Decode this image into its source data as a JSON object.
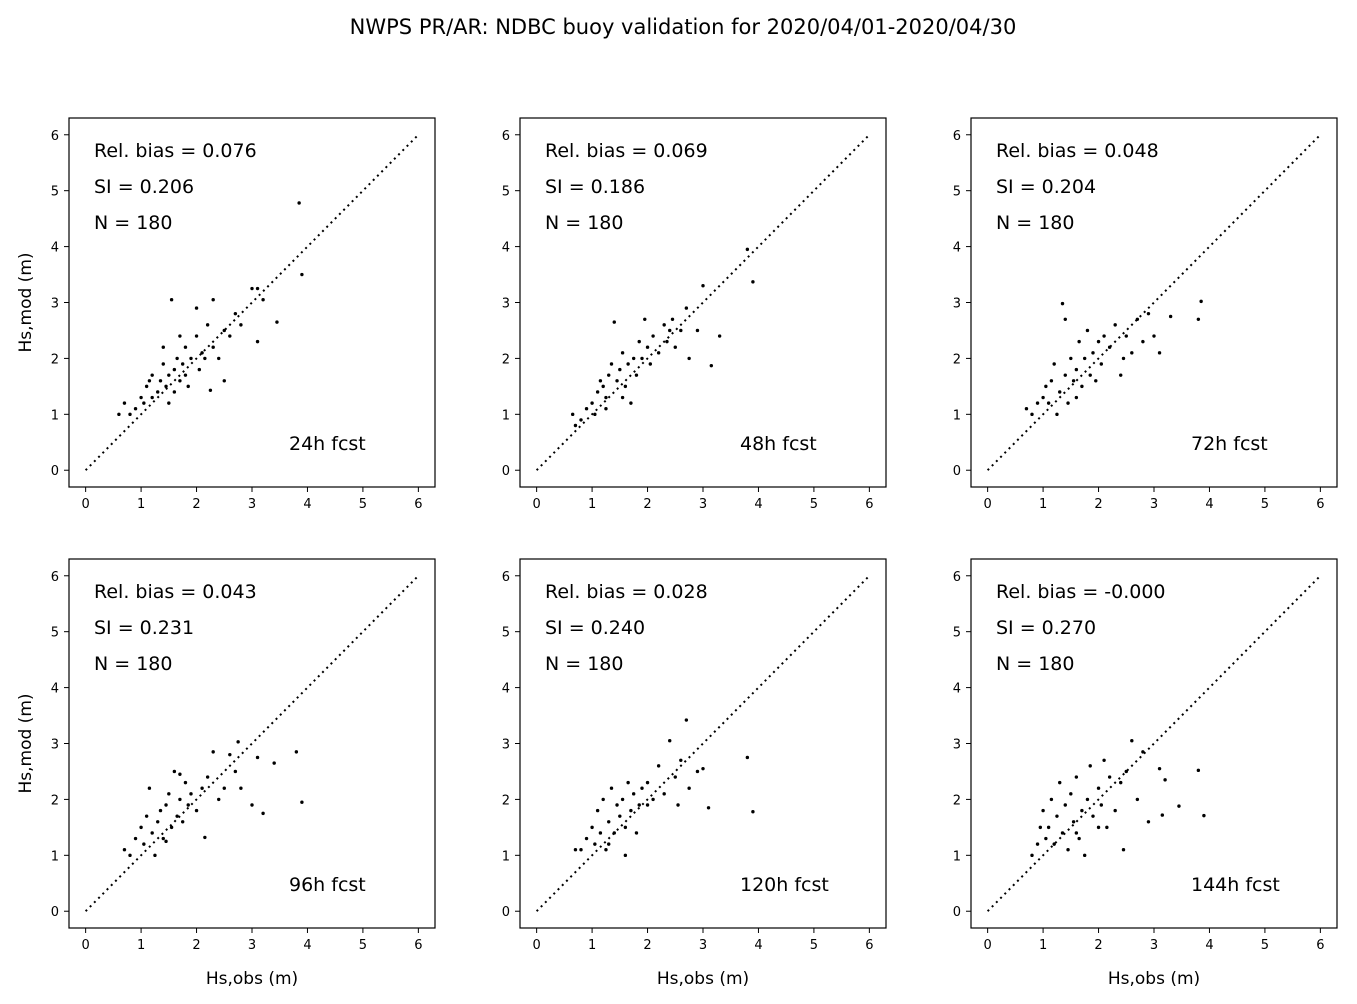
{
  "chart_data": {
    "type": "scatter",
    "title": "NWPS PR/AR: NDBC buoy validation for 2020/04/01-2020/04/30",
    "xlabel": "Hs,obs (m)",
    "ylabel": "Hs,mod (m)",
    "xlim": [
      -0.3,
      6.3
    ],
    "ylim": [
      -0.3,
      6.3
    ],
    "ticks": [
      0,
      1,
      2,
      3,
      4,
      5,
      6
    ],
    "reference_line": {
      "style": "dotted",
      "from": [
        0,
        0
      ],
      "to": [
        6,
        6
      ]
    },
    "panels": [
      {
        "label": "24h fcst",
        "rel_bias": "Rel. bias =  0.076",
        "si": "SI =  0.206",
        "n": "N = 180",
        "points": [
          [
            0.6,
            1.0
          ],
          [
            0.7,
            1.2
          ],
          [
            0.8,
            1.0
          ],
          [
            0.9,
            1.1
          ],
          [
            1.0,
            1.3
          ],
          [
            1.05,
            1.2
          ],
          [
            1.1,
            1.5
          ],
          [
            1.15,
            1.6
          ],
          [
            1.2,
            1.3
          ],
          [
            1.3,
            1.4
          ],
          [
            1.35,
            1.6
          ],
          [
            1.4,
            1.9
          ],
          [
            1.4,
            2.2
          ],
          [
            1.45,
            1.5
          ],
          [
            1.5,
            1.7
          ],
          [
            1.55,
            3.05
          ],
          [
            1.6,
            1.8
          ],
          [
            1.6,
            1.4
          ],
          [
            1.65,
            2.0
          ],
          [
            1.7,
            1.6
          ],
          [
            1.75,
            1.9
          ],
          [
            1.8,
            2.2
          ],
          [
            1.8,
            1.7
          ],
          [
            1.85,
            1.5
          ],
          [
            1.9,
            2.0
          ],
          [
            2.0,
            2.9
          ],
          [
            2.0,
            2.4
          ],
          [
            2.05,
            1.8
          ],
          [
            2.1,
            2.1
          ],
          [
            2.2,
            2.6
          ],
          [
            2.25,
            1.43
          ],
          [
            2.3,
            3.05
          ],
          [
            2.3,
            2.2
          ],
          [
            2.4,
            2.0
          ],
          [
            2.5,
            1.6
          ],
          [
            2.5,
            2.5
          ],
          [
            2.6,
            2.4
          ],
          [
            2.7,
            2.8
          ],
          [
            2.8,
            2.6
          ],
          [
            3.0,
            3.25
          ],
          [
            3.1,
            3.25
          ],
          [
            3.1,
            2.3
          ],
          [
            3.2,
            3.05
          ],
          [
            3.45,
            2.65
          ],
          [
            3.85,
            4.78
          ],
          [
            3.9,
            3.5
          ],
          [
            1.2,
            1.7
          ],
          [
            1.5,
            1.2
          ],
          [
            1.7,
            2.4
          ],
          [
            2.15,
            2.0
          ]
        ]
      },
      {
        "label": "48h fcst",
        "rel_bias": "Rel. bias =  0.069",
        "si": "SI =  0.186",
        "n": "N = 180",
        "points": [
          [
            0.65,
            1.0
          ],
          [
            0.7,
            0.8
          ],
          [
            0.8,
            0.9
          ],
          [
            0.9,
            1.1
          ],
          [
            1.0,
            1.2
          ],
          [
            1.05,
            1.0
          ],
          [
            1.1,
            1.4
          ],
          [
            1.2,
            1.5
          ],
          [
            1.25,
            1.3
          ],
          [
            1.3,
            1.7
          ],
          [
            1.35,
            1.9
          ],
          [
            1.4,
            2.65
          ],
          [
            1.45,
            1.6
          ],
          [
            1.5,
            1.8
          ],
          [
            1.55,
            2.1
          ],
          [
            1.6,
            1.5
          ],
          [
            1.65,
            1.9
          ],
          [
            1.7,
            1.2
          ],
          [
            1.75,
            2.0
          ],
          [
            1.8,
            1.7
          ],
          [
            1.85,
            2.3
          ],
          [
            1.9,
            2.0
          ],
          [
            2.0,
            2.2
          ],
          [
            2.05,
            1.9
          ],
          [
            2.1,
            2.4
          ],
          [
            2.2,
            2.1
          ],
          [
            2.3,
            2.6
          ],
          [
            2.35,
            2.3
          ],
          [
            2.4,
            2.5
          ],
          [
            2.5,
            2.2
          ],
          [
            2.6,
            2.5
          ],
          [
            2.7,
            2.9
          ],
          [
            2.75,
            2.0
          ],
          [
            2.9,
            2.5
          ],
          [
            3.0,
            3.3
          ],
          [
            3.15,
            1.87
          ],
          [
            3.3,
            2.4
          ],
          [
            3.8,
            3.95
          ],
          [
            3.9,
            3.37
          ],
          [
            1.15,
            1.6
          ],
          [
            1.55,
            1.3
          ],
          [
            1.95,
            2.7
          ],
          [
            2.45,
            2.7
          ],
          [
            1.25,
            1.1
          ]
        ]
      },
      {
        "label": "72h fcst",
        "rel_bias": "Rel. bias =  0.048",
        "si": "SI =  0.204",
        "n": "N = 180",
        "points": [
          [
            0.7,
            1.1
          ],
          [
            0.8,
            1.0
          ],
          [
            0.9,
            1.2
          ],
          [
            1.0,
            1.3
          ],
          [
            1.05,
            1.5
          ],
          [
            1.1,
            1.2
          ],
          [
            1.15,
            1.6
          ],
          [
            1.2,
            1.9
          ],
          [
            1.3,
            1.4
          ],
          [
            1.35,
            2.98
          ],
          [
            1.4,
            2.7
          ],
          [
            1.4,
            1.7
          ],
          [
            1.45,
            1.2
          ],
          [
            1.5,
            2.0
          ],
          [
            1.55,
            1.6
          ],
          [
            1.6,
            1.8
          ],
          [
            1.65,
            2.3
          ],
          [
            1.7,
            1.5
          ],
          [
            1.75,
            2.0
          ],
          [
            1.8,
            2.5
          ],
          [
            1.85,
            1.7
          ],
          [
            1.9,
            2.1
          ],
          [
            2.0,
            2.3
          ],
          [
            2.05,
            1.9
          ],
          [
            2.1,
            2.4
          ],
          [
            2.2,
            2.2
          ],
          [
            2.3,
            2.6
          ],
          [
            2.4,
            1.7
          ],
          [
            2.5,
            2.4
          ],
          [
            2.6,
            2.1
          ],
          [
            2.7,
            2.7
          ],
          [
            2.8,
            2.3
          ],
          [
            2.9,
            2.8
          ],
          [
            3.0,
            2.4
          ],
          [
            3.1,
            2.1
          ],
          [
            3.3,
            2.75
          ],
          [
            3.8,
            2.7
          ],
          [
            3.85,
            3.02
          ],
          [
            1.25,
            1.0
          ],
          [
            1.95,
            1.6
          ],
          [
            2.45,
            2.0
          ],
          [
            1.6,
            1.3
          ]
        ]
      },
      {
        "label": "96h fcst",
        "rel_bias": "Rel. bias =  0.043",
        "si": "SI =  0.231",
        "n": "N = 180",
        "points": [
          [
            0.7,
            1.1
          ],
          [
            0.8,
            1.0
          ],
          [
            0.9,
            1.3
          ],
          [
            1.0,
            1.5
          ],
          [
            1.05,
            1.2
          ],
          [
            1.1,
            1.7
          ],
          [
            1.15,
            2.2
          ],
          [
            1.2,
            1.4
          ],
          [
            1.3,
            1.6
          ],
          [
            1.35,
            1.8
          ],
          [
            1.4,
            1.3
          ],
          [
            1.45,
            1.9
          ],
          [
            1.5,
            2.1
          ],
          [
            1.55,
            1.5
          ],
          [
            1.6,
            2.5
          ],
          [
            1.65,
            1.7
          ],
          [
            1.7,
            2.0
          ],
          [
            1.75,
            1.6
          ],
          [
            1.8,
            2.3
          ],
          [
            1.85,
            1.9
          ],
          [
            1.9,
            2.1
          ],
          [
            2.0,
            1.8
          ],
          [
            2.1,
            2.2
          ],
          [
            2.15,
            1.32
          ],
          [
            2.2,
            2.4
          ],
          [
            2.3,
            2.85
          ],
          [
            2.4,
            2.0
          ],
          [
            2.5,
            2.2
          ],
          [
            2.6,
            2.8
          ],
          [
            2.7,
            2.5
          ],
          [
            2.75,
            3.03
          ],
          [
            2.8,
            2.2
          ],
          [
            3.0,
            1.9
          ],
          [
            3.1,
            2.75
          ],
          [
            3.2,
            1.75
          ],
          [
            3.4,
            2.65
          ],
          [
            3.8,
            2.85
          ],
          [
            3.9,
            1.95
          ],
          [
            1.25,
            1.0
          ],
          [
            1.45,
            1.25
          ],
          [
            1.7,
            2.45
          ]
        ]
      },
      {
        "label": "120h fcst",
        "rel_bias": "Rel. bias =  0.028",
        "si": "SI =  0.240",
        "n": "N = 180",
        "points": [
          [
            0.7,
            1.1
          ],
          [
            0.8,
            1.1
          ],
          [
            0.9,
            1.3
          ],
          [
            1.0,
            1.5
          ],
          [
            1.05,
            1.2
          ],
          [
            1.1,
            1.8
          ],
          [
            1.15,
            1.4
          ],
          [
            1.2,
            2.0
          ],
          [
            1.25,
            1.1
          ],
          [
            1.3,
            1.6
          ],
          [
            1.35,
            2.2
          ],
          [
            1.4,
            1.4
          ],
          [
            1.45,
            1.9
          ],
          [
            1.5,
            1.7
          ],
          [
            1.55,
            2.0
          ],
          [
            1.6,
            1.5
          ],
          [
            1.65,
            2.3
          ],
          [
            1.7,
            1.8
          ],
          [
            1.75,
            2.1
          ],
          [
            1.8,
            1.4
          ],
          [
            1.85,
            1.9
          ],
          [
            1.9,
            2.2
          ],
          [
            2.0,
            1.9
          ],
          [
            2.1,
            2.0
          ],
          [
            2.2,
            2.6
          ],
          [
            2.3,
            2.1
          ],
          [
            2.4,
            3.05
          ],
          [
            2.5,
            2.4
          ],
          [
            2.6,
            2.7
          ],
          [
            2.7,
            3.42
          ],
          [
            2.75,
            2.2
          ],
          [
            2.9,
            2.5
          ],
          [
            3.0,
            2.55
          ],
          [
            3.1,
            1.85
          ],
          [
            3.8,
            2.75
          ],
          [
            3.9,
            1.78
          ],
          [
            1.6,
            1.0
          ],
          [
            2.0,
            2.3
          ],
          [
            2.55,
            1.9
          ],
          [
            1.3,
            1.2
          ]
        ]
      },
      {
        "label": "144h fcst",
        "rel_bias": "Rel. bias = -0.000",
        "si": "SI =  0.270",
        "n": "N = 180",
        "points": [
          [
            0.8,
            1.0
          ],
          [
            0.9,
            1.2
          ],
          [
            0.95,
            1.5
          ],
          [
            1.0,
            1.8
          ],
          [
            1.05,
            1.3
          ],
          [
            1.1,
            1.5
          ],
          [
            1.15,
            2.0
          ],
          [
            1.2,
            1.2
          ],
          [
            1.25,
            1.7
          ],
          [
            1.3,
            2.3
          ],
          [
            1.35,
            1.4
          ],
          [
            1.4,
            1.9
          ],
          [
            1.45,
            1.1
          ],
          [
            1.5,
            2.1
          ],
          [
            1.55,
            1.6
          ],
          [
            1.6,
            2.4
          ],
          [
            1.65,
            1.3
          ],
          [
            1.7,
            1.8
          ],
          [
            1.75,
            1.0
          ],
          [
            1.8,
            2.0
          ],
          [
            1.85,
            2.6
          ],
          [
            1.9,
            1.7
          ],
          [
            2.0,
            2.2
          ],
          [
            2.05,
            1.9
          ],
          [
            2.1,
            2.7
          ],
          [
            2.15,
            1.5
          ],
          [
            2.2,
            2.4
          ],
          [
            2.3,
            1.8
          ],
          [
            2.4,
            2.3
          ],
          [
            2.45,
            1.1
          ],
          [
            2.5,
            2.5
          ],
          [
            2.6,
            3.05
          ],
          [
            2.7,
            2.0
          ],
          [
            2.8,
            2.85
          ],
          [
            2.9,
            1.6
          ],
          [
            3.1,
            2.55
          ],
          [
            3.15,
            1.72
          ],
          [
            3.2,
            2.35
          ],
          [
            3.45,
            1.88
          ],
          [
            3.8,
            2.52
          ],
          [
            3.9,
            1.71
          ],
          [
            1.6,
            1.4
          ],
          [
            2.0,
            1.5
          ]
        ]
      }
    ]
  }
}
